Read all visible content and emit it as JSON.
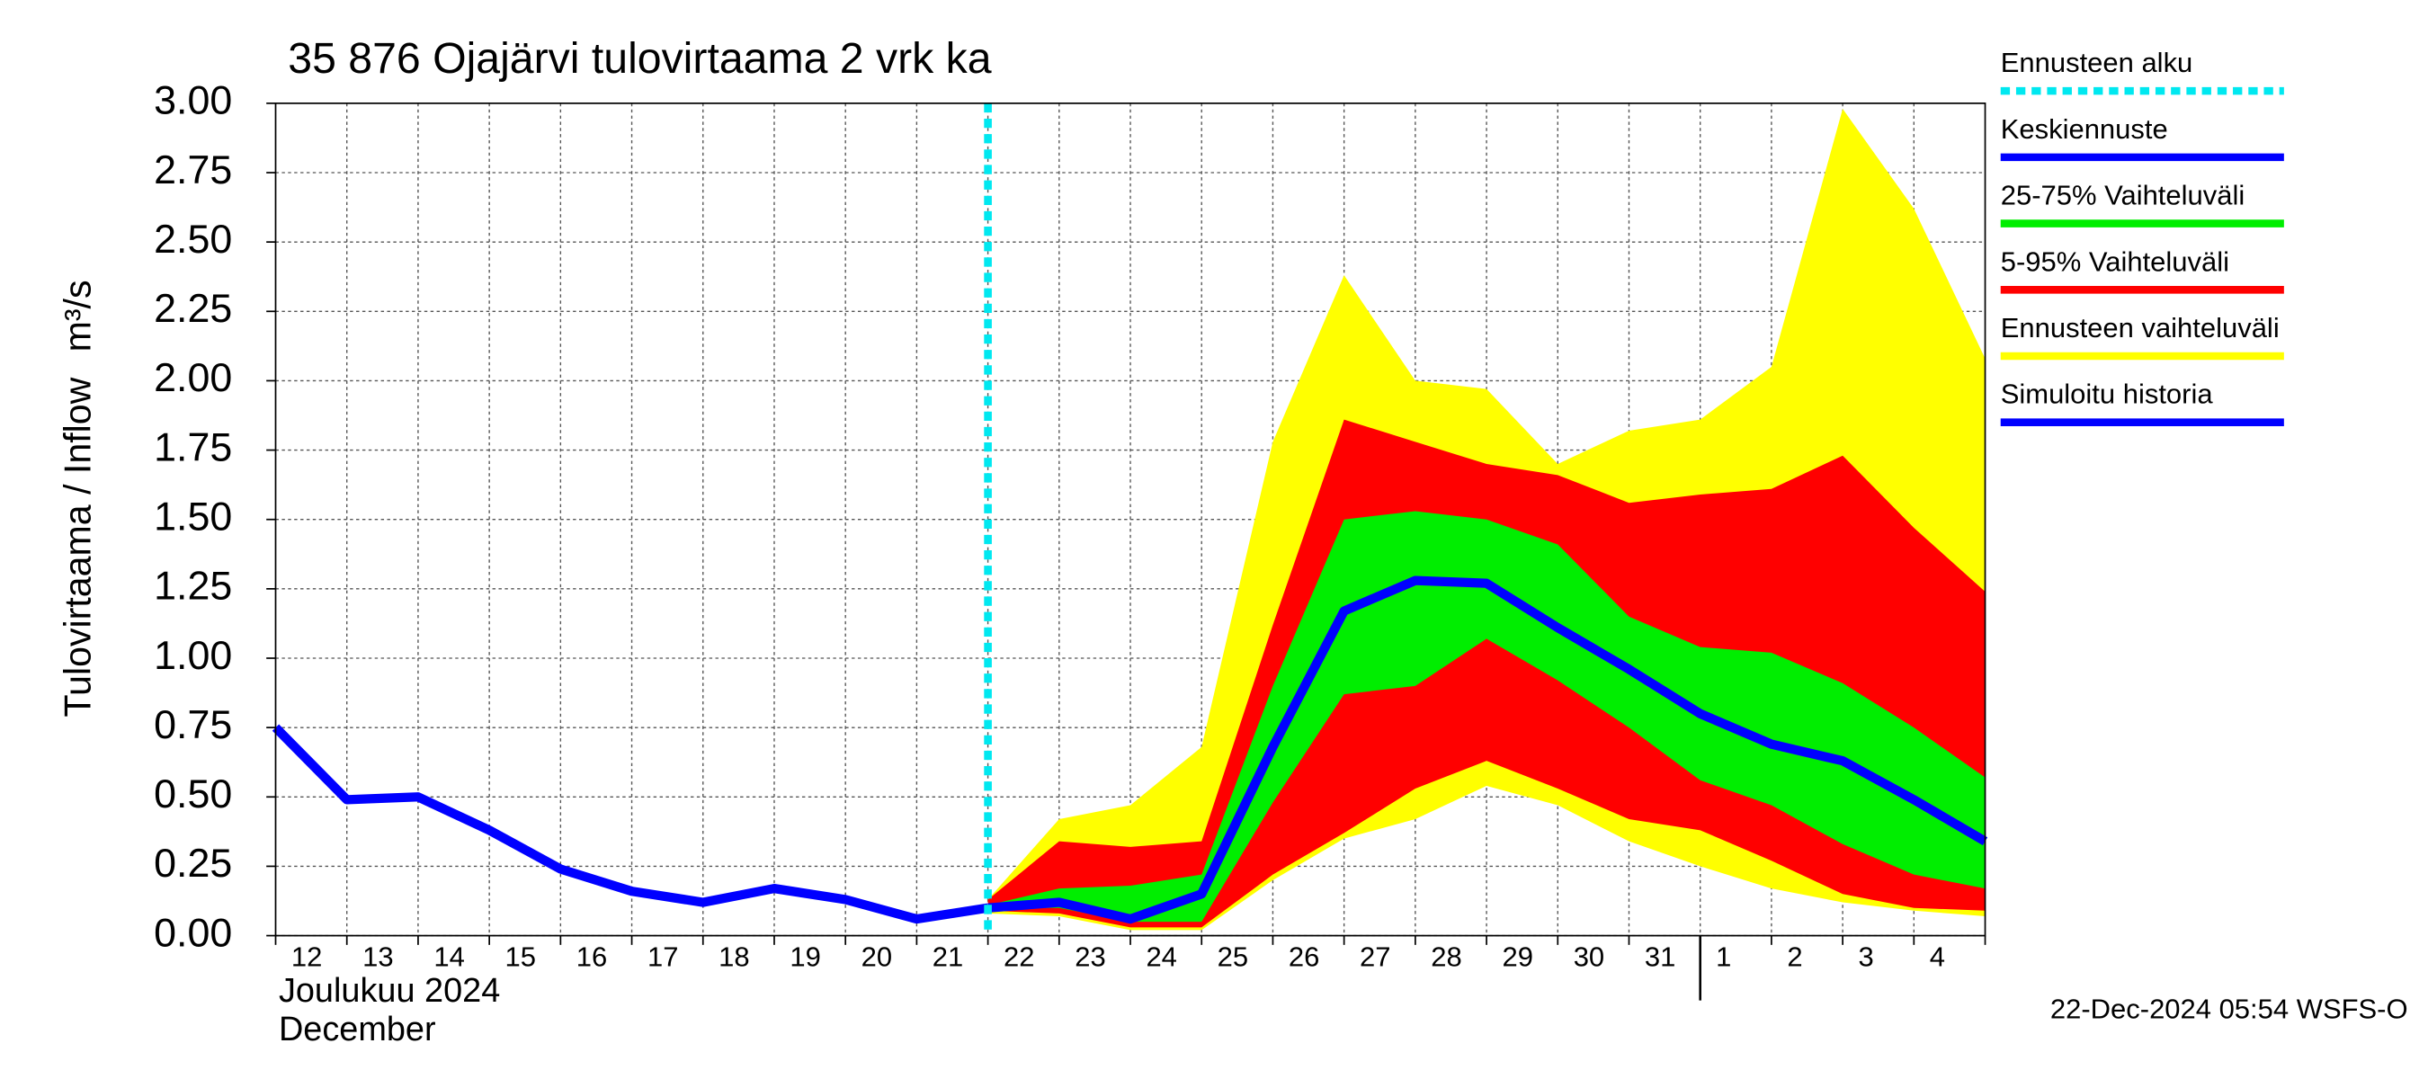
{
  "chart_data": {
    "type": "band-forecast",
    "title": "35 876 Ojajärvi tulovirtaama 2 vrk ka",
    "ylabel": "Tulovirtaama / Inflow",
    "yunit": "m³/s",
    "xlabel_fi": "Joulukuu  2024",
    "xlabel_en": "December",
    "footer": "22-Dec-2024 05:54 WSFS-O",
    "categories": [
      "12",
      "13",
      "14",
      "15",
      "16",
      "17",
      "18",
      "19",
      "20",
      "21",
      "22",
      "23",
      "24",
      "25",
      "26",
      "27",
      "28",
      "29",
      "30",
      "31",
      "1",
      "2",
      "3",
      "4",
      null
    ],
    "ylim": [
      0,
      3
    ],
    "yticks": [
      {
        "value": 0,
        "label": "0.00"
      },
      {
        "value": 0.25,
        "label": "0.25"
      },
      {
        "value": 0.5,
        "label": "0.50"
      },
      {
        "value": 0.75,
        "label": "0.75"
      },
      {
        "value": 1,
        "label": "1.00"
      },
      {
        "value": 1.25,
        "label": "1.25"
      },
      {
        "value": 1.5,
        "label": "1.50"
      },
      {
        "value": 1.75,
        "label": "1.75"
      },
      {
        "value": 2,
        "label": "2.00"
      },
      {
        "value": 2.25,
        "label": "2.25"
      },
      {
        "value": 2.5,
        "label": "2.50"
      },
      {
        "value": 2.75,
        "label": "2.75"
      },
      {
        "value": 3,
        "label": "3.00"
      }
    ],
    "grid": true,
    "series": [
      {
        "name": "Ennusteen alku",
        "color": "#00e8f0",
        "kind": "start",
        "x": 10
      },
      {
        "name": "Keskiennuste",
        "color": "#0000ff",
        "kind": "line",
        "values": [
          null,
          null,
          null,
          null,
          null,
          null,
          null,
          null,
          null,
          null,
          0.1,
          0.12,
          0.06,
          0.15,
          0.68,
          1.17,
          1.28,
          1.27,
          1.11,
          0.96,
          0.8,
          0.69,
          0.63,
          0.49,
          0.34
        ]
      },
      {
        "name": "25-75% Vaihteluväli",
        "color": "#00ee00",
        "kind": "band",
        "low": [
          null,
          null,
          null,
          null,
          null,
          null,
          null,
          null,
          null,
          null,
          0.1,
          0.1,
          0.05,
          0.05,
          0.48,
          0.87,
          0.9,
          1.07,
          0.92,
          0.75,
          0.56,
          0.47,
          0.33,
          0.22,
          0.17
        ],
        "high": [
          null,
          null,
          null,
          null,
          null,
          null,
          null,
          null,
          null,
          null,
          0.11,
          0.17,
          0.18,
          0.22,
          0.9,
          1.5,
          1.53,
          1.5,
          1.41,
          1.15,
          1.04,
          1.02,
          0.91,
          0.75,
          0.57
        ]
      },
      {
        "name": "5-95% Vaihteluväli",
        "color": "#ff0000",
        "kind": "band",
        "low": [
          null,
          null,
          null,
          null,
          null,
          null,
          null,
          null,
          null,
          null,
          0.09,
          0.08,
          0.03,
          0.03,
          0.22,
          0.37,
          0.53,
          0.63,
          0.53,
          0.42,
          0.38,
          0.27,
          0.15,
          0.1,
          0.09
        ],
        "high": [
          null,
          null,
          null,
          null,
          null,
          null,
          null,
          null,
          null,
          null,
          0.13,
          0.34,
          0.32,
          0.34,
          1.12,
          1.86,
          1.78,
          1.7,
          1.66,
          1.56,
          1.59,
          1.61,
          1.73,
          1.47,
          1.24
        ]
      },
      {
        "name": "Ennusteen vaihteluväli",
        "color": "#ffff00",
        "kind": "band",
        "low": [
          null,
          null,
          null,
          null,
          null,
          null,
          null,
          null,
          null,
          null,
          0.08,
          0.07,
          0.02,
          0.02,
          0.2,
          0.35,
          0.42,
          0.54,
          0.47,
          0.34,
          0.25,
          0.17,
          0.12,
          0.09,
          0.07
        ],
        "high": [
          null,
          null,
          null,
          null,
          null,
          null,
          null,
          null,
          null,
          null,
          0.13,
          0.42,
          0.47,
          0.68,
          1.78,
          2.38,
          2.0,
          1.97,
          1.7,
          1.82,
          1.86,
          2.05,
          2.98,
          2.62,
          2.08
        ]
      },
      {
        "name": "Simuloitu historia",
        "color": "#0000ff",
        "kind": "line",
        "values": [
          0.75,
          0.49,
          0.5,
          0.38,
          0.24,
          0.16,
          0.12,
          0.17,
          0.13,
          0.06,
          0.1,
          null,
          null,
          null,
          null,
          null,
          null,
          null,
          null,
          null,
          null,
          null,
          null,
          null,
          null
        ]
      }
    ]
  }
}
